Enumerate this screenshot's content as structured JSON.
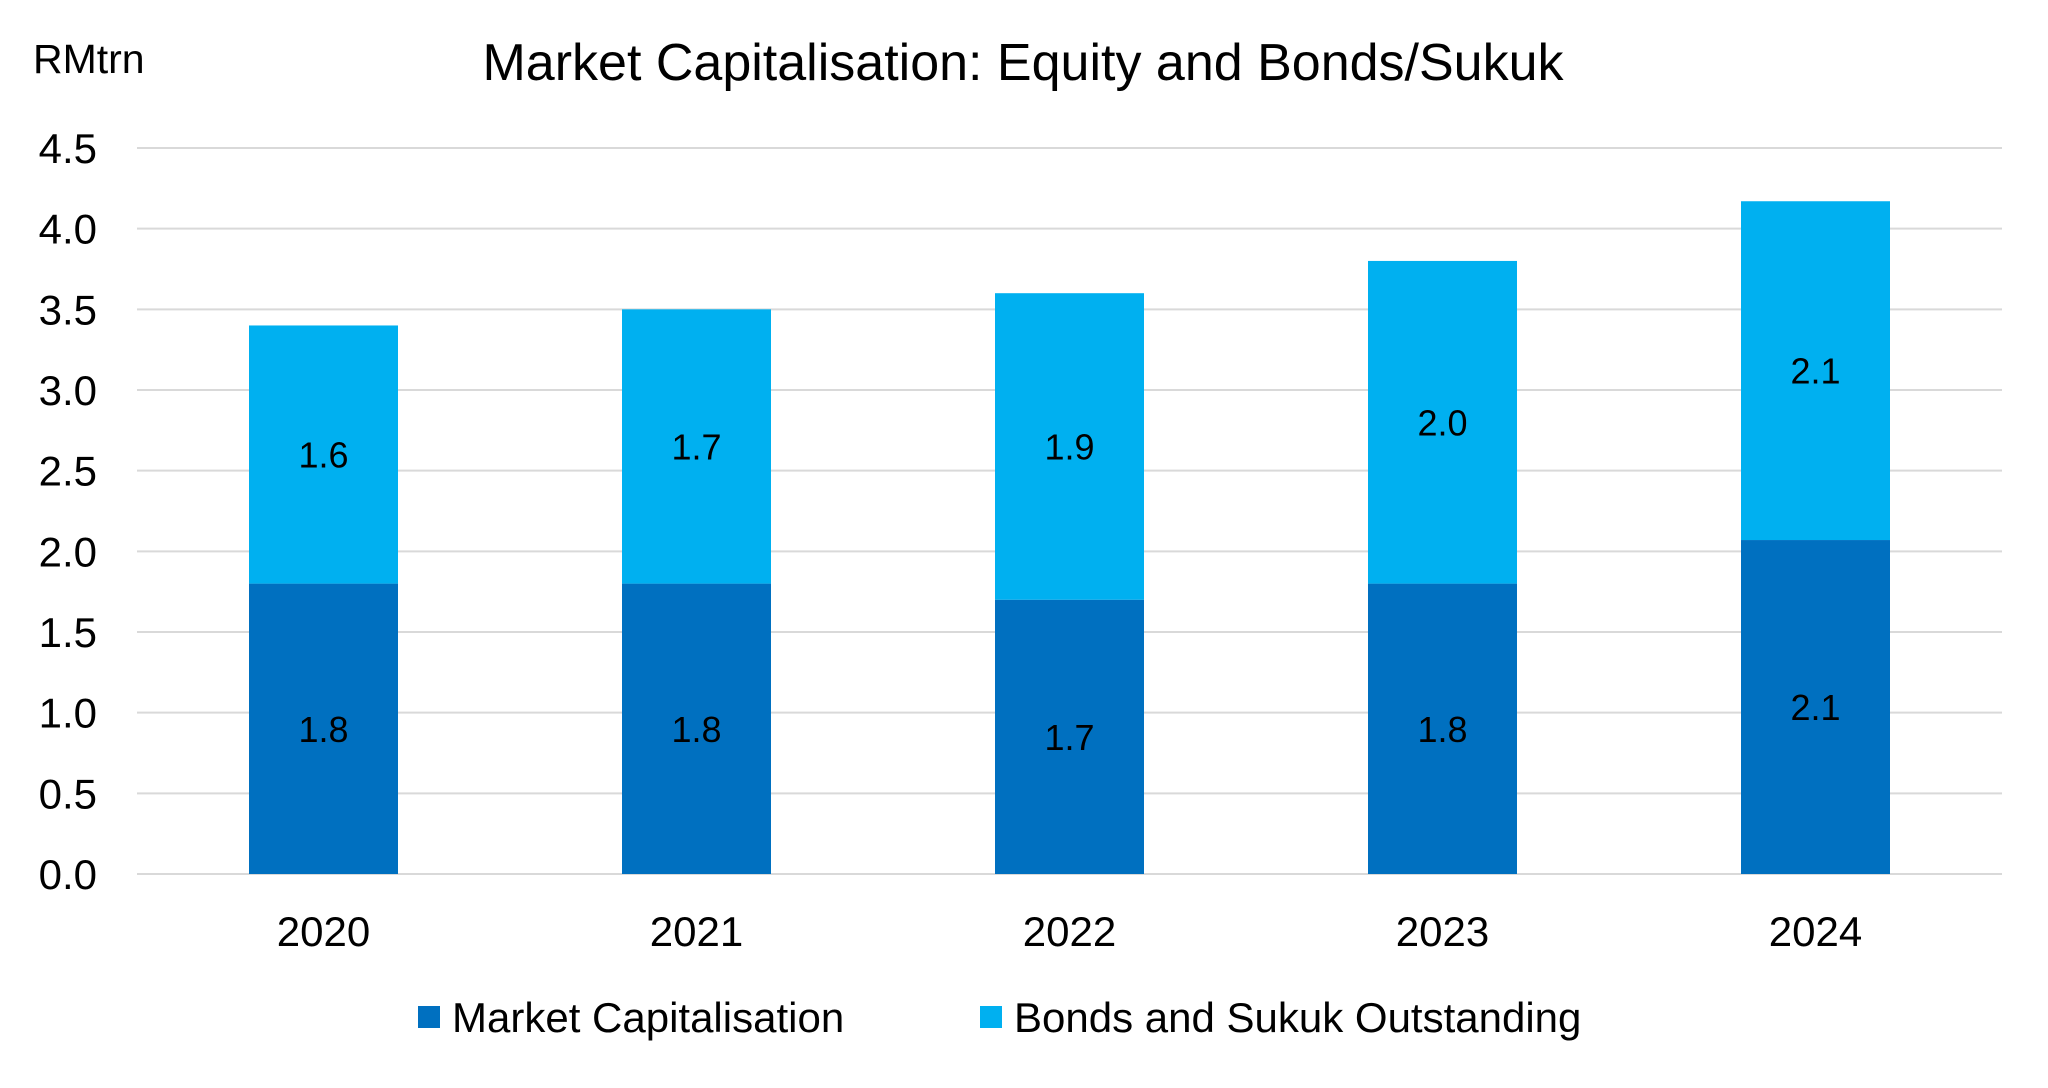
{
  "chart_data": {
    "type": "bar",
    "stacked": true,
    "title": "Market Capitalisation: Equity and Bonds/Sukuk",
    "ylabel": "RMtrn",
    "xlabel": "",
    "ylim": [
      0,
      4.5
    ],
    "yticks": [
      "0.0",
      "0.5",
      "1.0",
      "1.5",
      "2.0",
      "2.5",
      "3.0",
      "3.5",
      "4.0",
      "4.5"
    ],
    "grid": true,
    "legend_position": "bottom",
    "categories": [
      "2020",
      "2021",
      "2022",
      "2023",
      "2024"
    ],
    "series": [
      {
        "name": "Market Capitalisation",
        "color": "#0070C0",
        "values": [
          1.8,
          1.8,
          1.7,
          1.8,
          2.07
        ],
        "labels": [
          "1.8",
          "1.8",
          "1.7",
          "1.8",
          "2.1"
        ]
      },
      {
        "name": "Bonds and Sukuk Outstanding",
        "color": "#00B0F0",
        "values": [
          1.6,
          1.7,
          1.9,
          2.0,
          2.1
        ],
        "labels": [
          "1.6",
          "1.7",
          "1.9",
          "2.0",
          "2.1"
        ]
      }
    ]
  }
}
